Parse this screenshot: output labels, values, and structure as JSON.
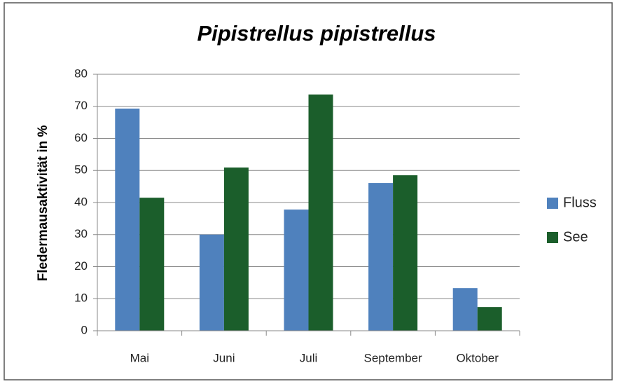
{
  "chart_data": {
    "type": "bar",
    "title": "Pipistrellus pipistrellus",
    "y_label": "Fledermausaktivität in %",
    "categories": [
      "Mai",
      "Juni",
      "Juli",
      "September",
      "Oktober"
    ],
    "series": [
      {
        "name": "Fluss",
        "color": "#4f81bd",
        "values": [
          69.3,
          30.0,
          37.8,
          46.1,
          13.3
        ]
      },
      {
        "name": "See",
        "color": "#1b5e2b",
        "values": [
          41.5,
          50.9,
          73.7,
          48.5,
          7.4
        ]
      }
    ],
    "ylim": [
      0,
      80
    ],
    "yticks": [
      0,
      10,
      20,
      30,
      40,
      50,
      60,
      70,
      80
    ],
    "grid": true,
    "legend": "right"
  }
}
